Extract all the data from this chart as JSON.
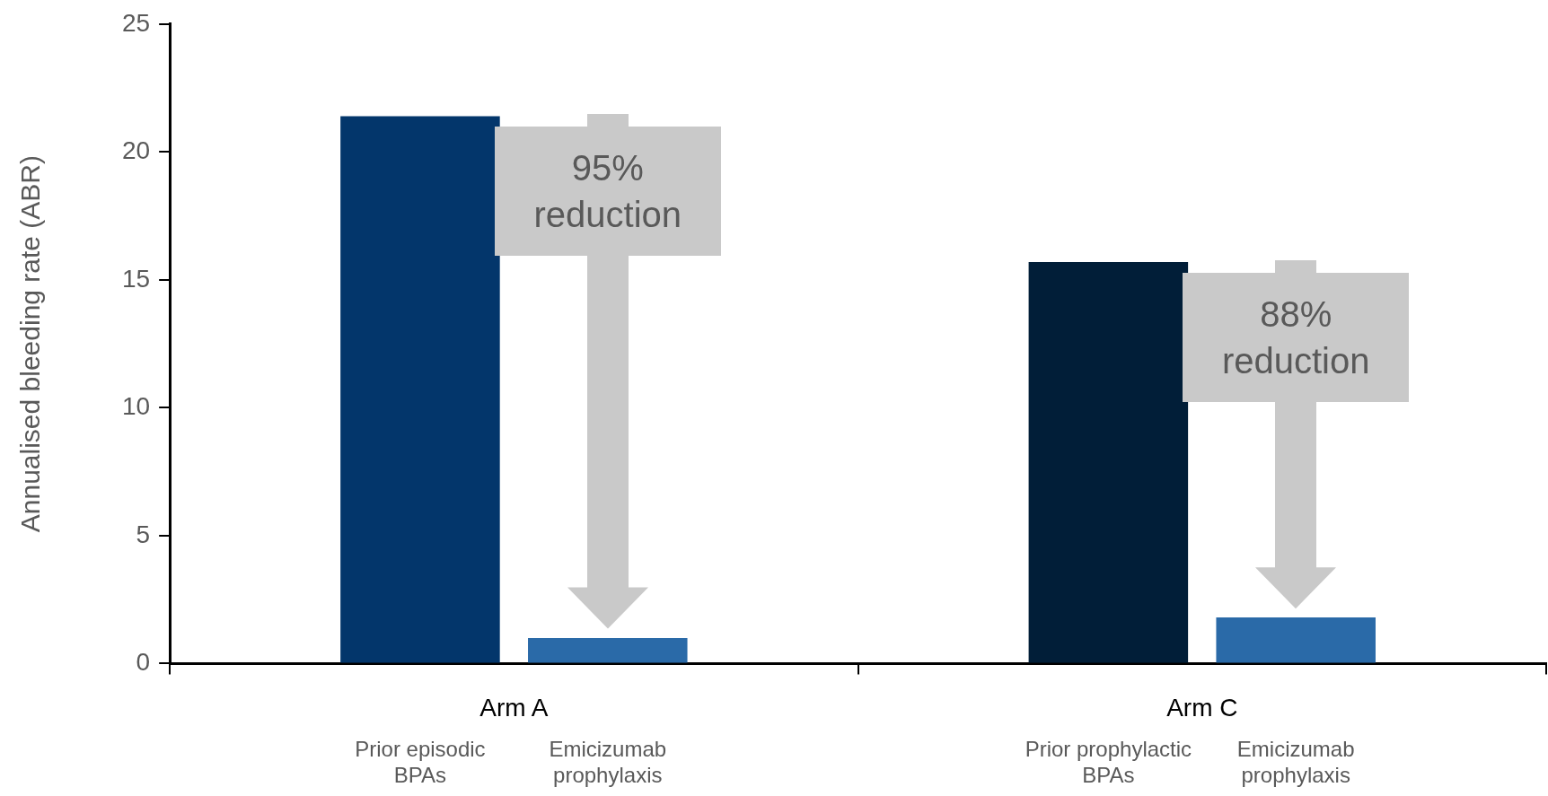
{
  "chart_data": {
    "type": "bar",
    "ylabel": "Annualised bleeding rate (ABR)",
    "categories": [
      "Arm A",
      "Arm C"
    ],
    "series": [
      {
        "colors": [
          "#03366b",
          "#011e38"
        ],
        "values": [
          21.4,
          15.7
        ]
      },
      {
        "color": "#2a6aa8",
        "values": [
          1.0,
          1.8
        ]
      }
    ],
    "ylim": [
      0,
      25
    ],
    "yticks": [
      0,
      5,
      10,
      15,
      20,
      25
    ],
    "grid": false,
    "legend": false,
    "annotations": [
      "Prior episodic BPAs",
      "Emicizumab prophylaxis",
      "Prior prophylactic BPAs",
      "Emicizumab prophylaxis",
      "95% reduction",
      "88% reduction"
    ]
  }
}
